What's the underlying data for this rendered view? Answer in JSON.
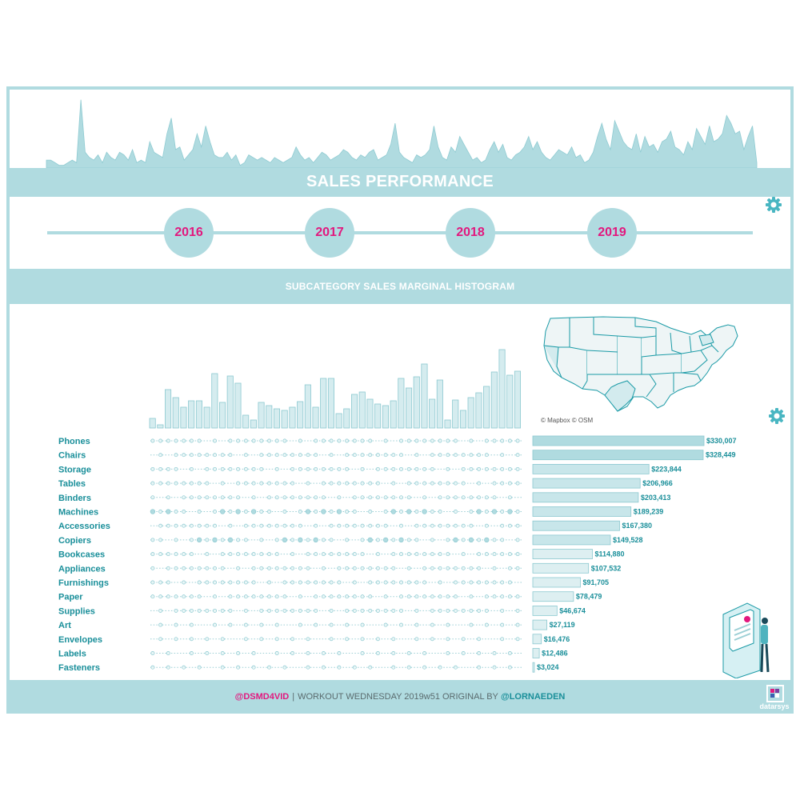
{
  "header": {
    "title": "SALES PERFORMANCE"
  },
  "years": [
    "2016",
    "2017",
    "2018",
    "2019"
  ],
  "subheader": {
    "title": "SUBCATEGORY SALES MARGINAL HISTOGRAM"
  },
  "map": {
    "attribution": "© Mapbox © OSM"
  },
  "footer": {
    "handle": "@DSMD4VID",
    "sep": "|",
    "text": "WORKOUT WEDNESDAY 2019w51 ORIGINAL BY",
    "author": "@LORNAEDEN"
  },
  "logo": {
    "text": "datarsys"
  },
  "icons": {
    "settings": "gear-icon",
    "illustration": "person-kiosk-icon",
    "logo": "datarsys-logo-icon"
  },
  "colors": {
    "accent": "#b0dbe0",
    "highlight": "#e2187e",
    "label": "#1a8f9a",
    "bar_fill": "#d5ecef",
    "bar_stroke": "#5cb8c2"
  },
  "chart_data": [
    {
      "type": "area",
      "name": "daily-sales-sparkline",
      "values": [
        3,
        3,
        2,
        1,
        1,
        2,
        3,
        2,
        26,
        6,
        4,
        3,
        5,
        2,
        6,
        4,
        3,
        6,
        5,
        3,
        7,
        2,
        3,
        2,
        10,
        6,
        5,
        4,
        13,
        19,
        7,
        8,
        3,
        5,
        7,
        13,
        8,
        16,
        10,
        5,
        4,
        4,
        6,
        3,
        5,
        1,
        2,
        5,
        4,
        3,
        4,
        3,
        2,
        4,
        3,
        2,
        3,
        4,
        8,
        5,
        3,
        4,
        2,
        4,
        6,
        5,
        3,
        4,
        5,
        7,
        6,
        4,
        3,
        5,
        4,
        6,
        7,
        3,
        4,
        5,
        9,
        17,
        6,
        4,
        3,
        2,
        5,
        4,
        5,
        7,
        16,
        8,
        4,
        3,
        8,
        6,
        12,
        9,
        6,
        3,
        4,
        2,
        3,
        7,
        10,
        6,
        9,
        4,
        3,
        5,
        6,
        8,
        12,
        7,
        10,
        6,
        4,
        3,
        5,
        7,
        6,
        5,
        8,
        4,
        5,
        2,
        3,
        6,
        12,
        17,
        11,
        7,
        18,
        14,
        10,
        8,
        7,
        13,
        6,
        12,
        8,
        9,
        6,
        10,
        11,
        14,
        8,
        7,
        5,
        10,
        7,
        15,
        12,
        9,
        16,
        10,
        11,
        13,
        20,
        17,
        13,
        14,
        7,
        12,
        16,
        2
      ],
      "ylim": [
        0,
        28
      ]
    },
    {
      "type": "bar",
      "name": "weekly-sales-histogram",
      "values": [
        12,
        4,
        48,
        38,
        26,
        34,
        34,
        26,
        68,
        32,
        65,
        56,
        16,
        10,
        32,
        28,
        24,
        22,
        26,
        33,
        54,
        26,
        62,
        62,
        18,
        24,
        42,
        45,
        36,
        30,
        28,
        34,
        62,
        50,
        64,
        80,
        36,
        60,
        10,
        35,
        22,
        38,
        44,
        52,
        70,
        98,
        66,
        71
      ],
      "highlight_values": [
        5,
        2,
        18,
        14,
        8,
        12,
        9,
        8,
        20,
        11,
        22,
        20,
        5,
        3,
        12,
        10,
        8,
        6,
        8,
        12,
        18,
        9,
        20,
        19,
        6,
        8,
        16,
        18,
        12,
        11,
        10,
        12,
        22,
        16,
        20,
        22,
        12,
        20,
        4,
        12,
        8,
        13,
        14,
        18,
        22,
        26,
        20,
        22
      ]
    },
    {
      "type": "bar",
      "name": "subcategory-sales",
      "categories": [
        "Phones",
        "Chairs",
        "Storage",
        "Tables",
        "Binders",
        "Machines",
        "Accessories",
        "Copiers",
        "Bookcases",
        "Appliances",
        "Furnishings",
        "Paper",
        "Supplies",
        "Art",
        "Envelopes",
        "Labels",
        "Fasteners"
      ],
      "values": [
        330007,
        328449,
        223844,
        206966,
        203413,
        189239,
        167380,
        149528,
        114880,
        107532,
        91705,
        78479,
        46674,
        27119,
        16476,
        12486,
        3024
      ],
      "labels": [
        "$330,007",
        "$328,449",
        "$223,844",
        "$206,966",
        "$203,413",
        "$189,239",
        "$167,380",
        "$149,528",
        "$114,880",
        "$107,532",
        "$91,705",
        "$78,479",
        "$46,674",
        "$27,119",
        "$16,476",
        "$12,486",
        "$3,024"
      ]
    }
  ]
}
